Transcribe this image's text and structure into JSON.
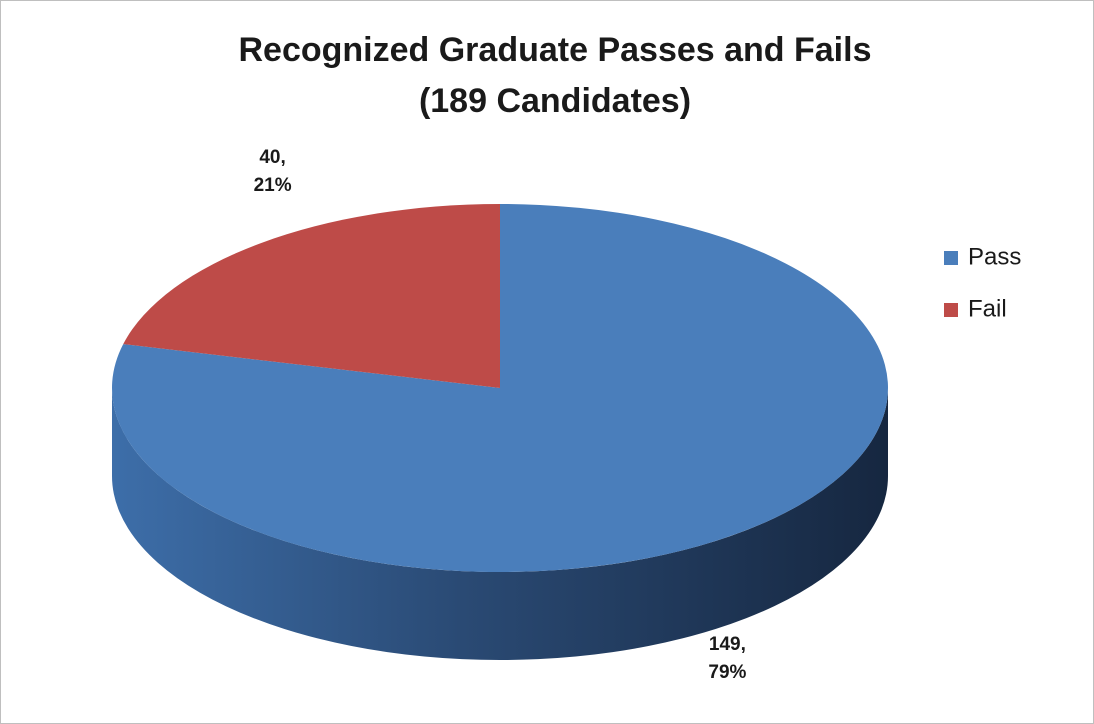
{
  "chart_data": {
    "type": "pie",
    "title": [
      "Recognized Graduate Passes and Fails",
      "(189 Candidates)"
    ],
    "categories": [
      "Pass",
      "Fail"
    ],
    "values": [
      149,
      40
    ],
    "value_labels": [
      "149,",
      "40,"
    ],
    "percents": [
      79,
      21
    ],
    "percent_labels": [
      "79%",
      "21%"
    ],
    "colors": [
      "#4a7ebb",
      "#be4b48"
    ],
    "legend": "right"
  }
}
